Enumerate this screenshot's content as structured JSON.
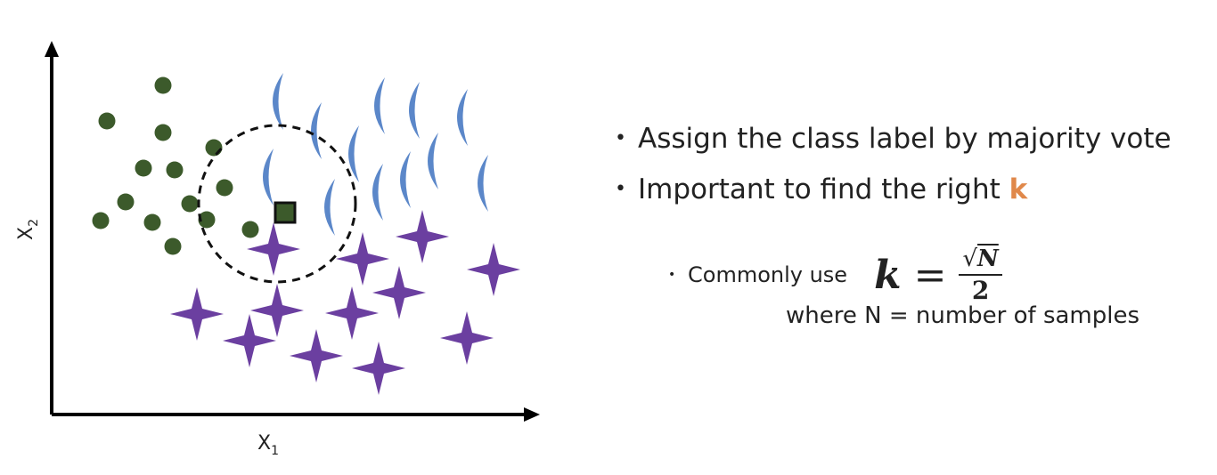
{
  "diagram": {
    "x_axis_label": "X",
    "x_axis_sub": "1",
    "y_axis_label": "X",
    "y_axis_sub": "2",
    "colors": {
      "circle_class": "#3c5a2b",
      "crescent_class": "#5b87c9",
      "star_class": "#6b3fa0",
      "query_point": "#3c5a2b",
      "neighborhood": "#111111"
    }
  },
  "bullets": {
    "b1": "Assign the class label by majority vote",
    "b2_prefix": "Important to find the right ",
    "b2_k": "k",
    "b3": "Commonly use",
    "formula": {
      "k": "k",
      "eq": "=",
      "radical": "√",
      "numerator": "N",
      "denominator": "2"
    },
    "where": "where N = number of samples"
  }
}
